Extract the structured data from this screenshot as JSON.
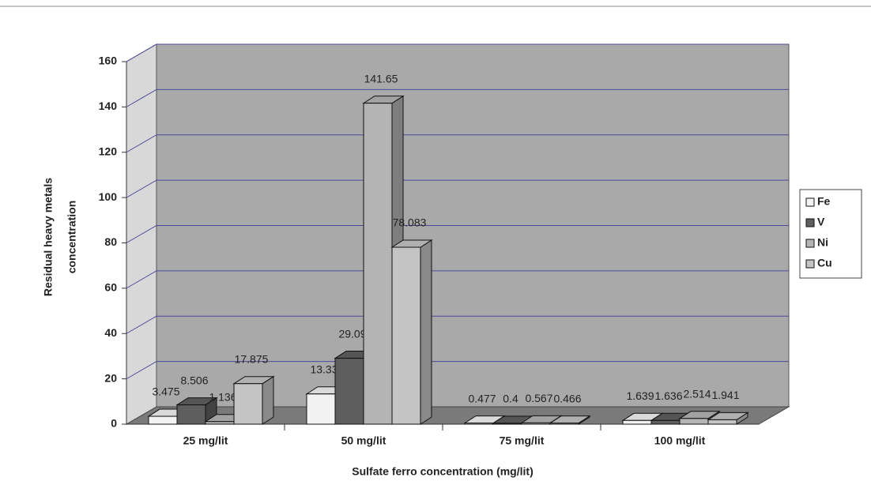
{
  "chart_data": {
    "type": "bar3d",
    "xlabel": "Sulfate ferro concentration (mg/lit)",
    "ylabel": [
      "Residual heavy metals",
      "concentration"
    ],
    "categories": [
      "25 mg/lit",
      "50 mg/lit",
      "75 mg/lit",
      "100 mg/lit"
    ],
    "series": [
      {
        "name": "Fe",
        "color": "#f2f2f2",
        "values": [
          3.475,
          13.33,
          0.477,
          1.639
        ]
      },
      {
        "name": "V",
        "color": "#5e5e5e",
        "values": [
          8.506,
          29.09,
          0.4,
          1.636
        ]
      },
      {
        "name": "Ni",
        "color": "#b4b4b4",
        "values": [
          1.136,
          141.65,
          0.567,
          2.514
        ]
      },
      {
        "name": "Cu",
        "color": "#c4c4c4",
        "values": [
          17.875,
          78.083,
          0.466,
          1.941
        ]
      }
    ],
    "ylim": [
      0,
      160
    ],
    "yticks": [
      0,
      20,
      40,
      60,
      80,
      100,
      120,
      140,
      160
    ],
    "grid": true,
    "legend": "right"
  }
}
